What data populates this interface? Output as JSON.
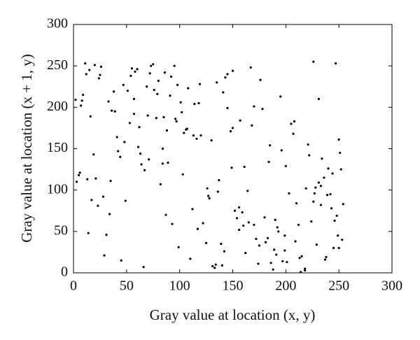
{
  "chart_data": {
    "type": "scatter",
    "xlabel": "Gray value at location (x, y)",
    "ylabel": "Gray value at location (x + 1, y)",
    "xlim": [
      0,
      300
    ],
    "ylim": [
      0,
      300
    ],
    "xticks": [
      0,
      50,
      100,
      150,
      200,
      250,
      300
    ],
    "yticks": [
      0,
      50,
      100,
      150,
      200,
      250,
      300
    ],
    "color": "#000000",
    "x": [
      12,
      45,
      78,
      203,
      156,
      231,
      89,
      34,
      167,
      245,
      5,
      118,
      190,
      62,
      140,
      222,
      98,
      17,
      250,
      73,
      181,
      126,
      39,
      212,
      150,
      67,
      238,
      104,
      23,
      195,
      133,
      84,
      176,
      3,
      249,
      57,
      112,
      226,
      161,
      29,
      208,
      93,
      145,
      71,
      239,
      186,
      51,
      120,
      14,
      170,
      233,
      80,
      199,
      107,
      42,
      154,
      218,
      9,
      128,
      247,
      64,
      183,
      96,
      137,
      25,
      215,
      159,
      48,
      242,
      101,
      192,
      76,
      131,
      19,
      205,
      164,
      55,
      229,
      116,
      87,
      252,
      36,
      174,
      143,
      210,
      61,
      122,
      8,
      189,
      236,
      95,
      148,
      31,
      200,
      69,
      254,
      110,
      178,
      44,
      224,
      135,
      82,
      16,
      197,
      152,
      58,
      240,
      125,
      91,
      185,
      28,
      214,
      168,
      2,
      246,
      103,
      139,
      75,
      207,
      49,
      162,
      234,
      114,
      21,
      193,
      86,
      157,
      66,
      227,
      130,
      38,
      180,
      251,
      99,
      145,
      11,
      219,
      172,
      53,
      119,
      243,
      84,
      201,
      26,
      160,
      70,
      231,
      108,
      188,
      41,
      136,
      253,
      92,
      6,
      213,
      150,
      60,
      226,
      117,
      33,
      196,
      142,
      79,
      248,
      13,
      175,
      102,
      221,
      54,
      134,
      244,
      88,
      165,
      20,
      209,
      127,
      47,
      237,
      97,
      184,
      7,
      156,
      72,
      218,
      113,
      35,
      199,
      141,
      63,
      250,
      85,
      170,
      24,
      228,
      106,
      15,
      191,
      149,
      57,
      233
    ],
    "y": [
      240,
      15,
      187,
      96,
      52,
      210,
      133,
      71,
      248,
      30,
      118,
      205,
      64,
      176,
      9,
      142,
      227,
      88,
      161,
      250,
      37,
      102,
      195,
      58,
      244,
      124,
      19,
      169,
      81,
      213,
      6,
      150,
      233,
      110,
      45,
      192,
      77,
      255,
      128,
      21,
      183,
      59,
      240,
      137,
      94,
      12,
      220,
      166,
      48,
      201,
      105,
      232,
      27,
      174,
      147,
      66,
      3,
      215,
      90,
      253,
      131,
      42,
      186,
      112,
      239,
      20,
      73,
      158,
      95,
      206,
      55,
      221,
      8,
      143,
      180,
      99,
      247,
      34,
      162,
      70,
      125,
      196,
      11,
      236,
      84,
      152,
      60,
      208,
      28,
      115,
      250,
      171,
      46,
      129,
      225,
      83,
      17,
      198,
      140,
      62,
      230,
      107,
      189,
      14,
      75,
      243,
      126,
      36,
      214,
      154,
      92,
      1,
      178,
      209,
      63,
      119,
      35,
      252,
      168,
      87,
      24,
      138,
      204,
      114,
      50,
      242,
      184,
      7,
      96,
      160,
      219,
      67,
      145,
      31,
      199,
      253,
      102,
      41,
      181,
      228,
      78,
      132,
      13,
      249,
      57,
      190,
      109,
      223,
      4,
      164,
      98,
      40,
      237,
      121,
      18,
      175,
      246,
      86,
      53,
      207,
      148,
      26,
      216,
      69,
      113,
      33,
      194,
      155,
      238,
      10,
      120,
      172,
      61,
      251,
      38,
      93,
      227,
      16,
      183,
      134,
      202,
      79,
      241,
      5,
      166,
      111,
      45,
      218,
      144,
      30,
      188,
      58,
      235,
      103,
      173,
      245,
      22,
      127,
      210,
      82
    ]
  }
}
